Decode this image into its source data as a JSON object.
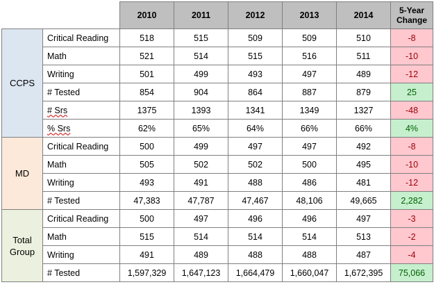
{
  "header": {
    "years": [
      "2010",
      "2011",
      "2012",
      "2013",
      "2014"
    ],
    "change_label": "5-Year Change"
  },
  "groups": [
    {
      "label": "CCPS",
      "rows": [
        {
          "metric": "Critical Reading",
          "values": [
            "518",
            "515",
            "509",
            "509",
            "510"
          ],
          "change": "-8",
          "trend": "neg"
        },
        {
          "metric": "Math",
          "values": [
            "521",
            "514",
            "515",
            "516",
            "511"
          ],
          "change": "-10",
          "trend": "neg"
        },
        {
          "metric": "Writing",
          "values": [
            "501",
            "499",
            "493",
            "497",
            "489"
          ],
          "change": "-12",
          "trend": "neg"
        },
        {
          "metric": "# Tested",
          "values": [
            "854",
            "904",
            "864",
            "887",
            "879"
          ],
          "change": "25",
          "trend": "pos"
        },
        {
          "metric": "# Srs",
          "values": [
            "1375",
            "1393",
            "1341",
            "1349",
            "1327"
          ],
          "change": "-48",
          "trend": "neg"
        },
        {
          "metric": "% Srs",
          "values": [
            "62%",
            "65%",
            "64%",
            "66%",
            "66%"
          ],
          "change": "4%",
          "trend": "pos"
        }
      ]
    },
    {
      "label": "MD",
      "rows": [
        {
          "metric": "Critical Reading",
          "values": [
            "500",
            "499",
            "497",
            "497",
            "492"
          ],
          "change": "-8",
          "trend": "neg"
        },
        {
          "metric": "Math",
          "values": [
            "505",
            "502",
            "502",
            "500",
            "495"
          ],
          "change": "-10",
          "trend": "neg"
        },
        {
          "metric": "Writing",
          "values": [
            "493",
            "491",
            "488",
            "486",
            "481"
          ],
          "change": "-12",
          "trend": "neg"
        },
        {
          "metric": "# Tested",
          "values": [
            "47,383",
            "47,787",
            "47,467",
            "48,106",
            "49,665"
          ],
          "change": "2,282",
          "trend": "pos"
        }
      ]
    },
    {
      "label": "Total Group",
      "rows": [
        {
          "metric": "Critical Reading",
          "values": [
            "500",
            "497",
            "496",
            "496",
            "497"
          ],
          "change": "-3",
          "trend": "neg"
        },
        {
          "metric": "Math",
          "values": [
            "515",
            "514",
            "514",
            "514",
            "513"
          ],
          "change": "-2",
          "trend": "neg"
        },
        {
          "metric": "Writing",
          "values": [
            "491",
            "489",
            "488",
            "488",
            "487"
          ],
          "change": "-4",
          "trend": "neg"
        },
        {
          "metric": "# Tested",
          "values": [
            "1,597,329",
            "1,647,123",
            "1,664,479",
            "1,660,047",
            "1,672,395"
          ],
          "change": "75,066",
          "trend": "pos"
        }
      ]
    }
  ],
  "colors": {
    "header_gray": "#bfbfbf",
    "ccps_blue": "#dce6f1",
    "md_peach": "#fde9d9",
    "total_green": "#ebf1de",
    "negative_fill": "#ffc7ce",
    "negative_text": "#9c0006",
    "positive_fill": "#c6efce",
    "positive_text": "#006100"
  }
}
